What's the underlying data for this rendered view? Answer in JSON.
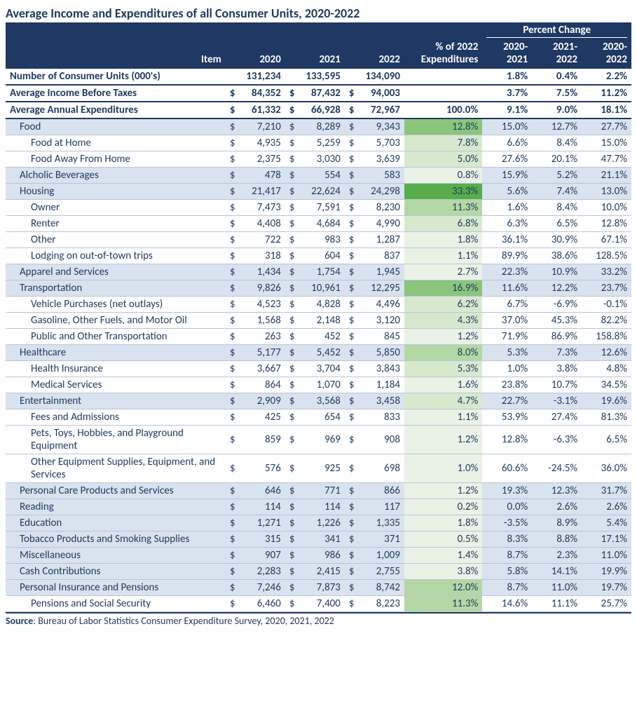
{
  "title": "Average Income and Expenditures of all Consumer Units, 2020-2022",
  "headers": {
    "item": "Item",
    "y2020": "2020",
    "y2021": "2021",
    "y2022": "2022",
    "pctExp": "% of 2022 Expenditures",
    "pctChange": "Percent Change",
    "c1": "2020-2021",
    "c2": "2021-2022",
    "c3": "2020-2022"
  },
  "colors": {
    "heatmap": {
      "none": "#ffffff",
      "l0": "#eaf2e6",
      "l1": "#d7e9cd",
      "l2": "#b4d7a6",
      "l3": "#8bc57c",
      "l4": "#57ad4a",
      "cat": "#d9e2ef",
      "header": "#1f3864",
      "text": "#1f3a5f"
    }
  },
  "rows": [
    {
      "kind": "bold",
      "item": "Number of Consumer Units (000's)",
      "v": [
        "131,234",
        "133,595",
        "134,090"
      ],
      "dollar": false,
      "pct": "",
      "pl": "none",
      "chg": [
        "1.8%",
        "0.4%",
        "2.2%"
      ]
    },
    {
      "kind": "bold",
      "item": "Average Income Before Taxes",
      "v": [
        "84,352",
        "87,432",
        "94,003"
      ],
      "dollar": true,
      "pct": "",
      "pl": "none",
      "chg": [
        "3.7%",
        "7.5%",
        "11.2%"
      ]
    },
    {
      "kind": "bold",
      "item": "Average Annual Expenditures",
      "v": [
        "61,332",
        "66,928",
        "72,967"
      ],
      "dollar": true,
      "pct": "100.0%",
      "pl": "none",
      "chg": [
        "9.1%",
        "9.0%",
        "18.1%"
      ]
    },
    {
      "kind": "cat",
      "indent": 1,
      "item": "Food",
      "v": [
        "7,210",
        "8,289",
        "9,343"
      ],
      "dollar": true,
      "pct": "12.8%",
      "pl": "l3",
      "chg": [
        "15.0%",
        "12.7%",
        "27.7%"
      ]
    },
    {
      "indent": 2,
      "item": "Food at Home",
      "v": [
        "4,935",
        "5,259",
        "5,703"
      ],
      "dollar": true,
      "pct": "7.8%",
      "pl": "l1",
      "chg": [
        "6.6%",
        "8.4%",
        "15.0%"
      ]
    },
    {
      "indent": 2,
      "item": "Food Away From Home",
      "v": [
        "2,375",
        "3,030",
        "3,639"
      ],
      "dollar": true,
      "pct": "5.0%",
      "pl": "l1",
      "chg": [
        "27.6%",
        "20.1%",
        "47.7%"
      ]
    },
    {
      "kind": "cat",
      "indent": 1,
      "item": "Alcholic Beverages",
      "v": [
        "478",
        "554",
        "583"
      ],
      "dollar": true,
      "pct": "0.8%",
      "pl": "l0",
      "chg": [
        "15.9%",
        "5.2%",
        "21.1%"
      ]
    },
    {
      "kind": "cat",
      "indent": 1,
      "item": "Housing",
      "v": [
        "21,417",
        "22,624",
        "24,298"
      ],
      "dollar": true,
      "pct": "33.3%",
      "pl": "l4",
      "chg": [
        "5.6%",
        "7.4%",
        "13.0%"
      ]
    },
    {
      "indent": 2,
      "item": "Owner",
      "v": [
        "7,473",
        "7,591",
        "8,230"
      ],
      "dollar": true,
      "pct": "11.3%",
      "pl": "l2",
      "chg": [
        "1.6%",
        "8.4%",
        "10.0%"
      ]
    },
    {
      "indent": 2,
      "item": "Renter",
      "v": [
        "4,408",
        "4,684",
        "4,990"
      ],
      "dollar": true,
      "pct": "6.8%",
      "pl": "l1",
      "chg": [
        "6.3%",
        "6.5%",
        "12.8%"
      ]
    },
    {
      "indent": 2,
      "item": "Other",
      "v": [
        "722",
        "983",
        "1,287"
      ],
      "dollar": true,
      "pct": "1.8%",
      "pl": "l0",
      "chg": [
        "36.1%",
        "30.9%",
        "67.1%"
      ]
    },
    {
      "indent": 2,
      "item": "Lodging on out-of-town trips",
      "v": [
        "318",
        "604",
        "837"
      ],
      "dollar": true,
      "pct": "1.1%",
      "pl": "l0",
      "chg": [
        "89.9%",
        "38.6%",
        "128.5%"
      ]
    },
    {
      "kind": "cat",
      "indent": 1,
      "item": "Apparel and Services",
      "v": [
        "1,434",
        "1,754",
        "1,945"
      ],
      "dollar": true,
      "pct": "2.7%",
      "pl": "l0",
      "chg": [
        "22.3%",
        "10.9%",
        "33.2%"
      ]
    },
    {
      "kind": "cat",
      "indent": 1,
      "item": "Transportation",
      "v": [
        "9,826",
        "10,961",
        "12,295"
      ],
      "dollar": true,
      "pct": "16.9%",
      "pl": "l3",
      "chg": [
        "11.6%",
        "12.2%",
        "23.7%"
      ]
    },
    {
      "indent": 2,
      "item": "Vehicle Purchases (net outlays)",
      "v": [
        "4,523",
        "4,828",
        "4,496"
      ],
      "dollar": true,
      "pct": "6.2%",
      "pl": "l1",
      "chg": [
        "6.7%",
        "-6.9%",
        "-0.1%"
      ]
    },
    {
      "indent": 2,
      "item": "Gasoline, Other Fuels, and Motor Oil",
      "v": [
        "1,568",
        "2,148",
        "3,120"
      ],
      "dollar": true,
      "pct": "4.3%",
      "pl": "l1",
      "chg": [
        "37.0%",
        "45.3%",
        "82.2%"
      ]
    },
    {
      "indent": 2,
      "item": "Public and Other Transportation",
      "v": [
        "263",
        "452",
        "845"
      ],
      "dollar": true,
      "pct": "1.2%",
      "pl": "l0",
      "chg": [
        "71.9%",
        "86.9%",
        "158.8%"
      ]
    },
    {
      "kind": "cat",
      "indent": 1,
      "item": "Healthcare",
      "v": [
        "5,177",
        "5,452",
        "5,850"
      ],
      "dollar": true,
      "pct": "8.0%",
      "pl": "l2",
      "chg": [
        "5.3%",
        "7.3%",
        "12.6%"
      ]
    },
    {
      "indent": 2,
      "item": "Health Insurance",
      "v": [
        "3,667",
        "3,704",
        "3,843"
      ],
      "dollar": true,
      "pct": "5.3%",
      "pl": "l1",
      "chg": [
        "1.0%",
        "3.8%",
        "4.8%"
      ]
    },
    {
      "indent": 2,
      "item": "Medical Services",
      "v": [
        "864",
        "1,070",
        "1,184"
      ],
      "dollar": true,
      "pct": "1.6%",
      "pl": "l0",
      "chg": [
        "23.8%",
        "10.7%",
        "34.5%"
      ]
    },
    {
      "kind": "cat",
      "indent": 1,
      "item": "Entertainment",
      "v": [
        "2,909",
        "3,568",
        "3,458"
      ],
      "dollar": true,
      "pct": "4.7%",
      "pl": "l1",
      "chg": [
        "22.7%",
        "-3.1%",
        "19.6%"
      ]
    },
    {
      "indent": 2,
      "item": "Fees and Admissions",
      "v": [
        "425",
        "654",
        "833"
      ],
      "dollar": true,
      "pct": "1.1%",
      "pl": "l0",
      "chg": [
        "53.9%",
        "27.4%",
        "81.3%"
      ]
    },
    {
      "indent": 2,
      "item": "Pets, Toys, Hobbies, and Playground Equipment",
      "v": [
        "859",
        "969",
        "908"
      ],
      "dollar": true,
      "pct": "1.2%",
      "pl": "l0",
      "chg": [
        "12.8%",
        "-6.3%",
        "6.5%"
      ]
    },
    {
      "indent": 2,
      "item": "Other Equipment Supplies, Equipment, and Services",
      "v": [
        "576",
        "925",
        "698"
      ],
      "dollar": true,
      "pct": "1.0%",
      "pl": "l0",
      "chg": [
        "60.6%",
        "-24.5%",
        "36.0%"
      ]
    },
    {
      "kind": "cat",
      "indent": 1,
      "item": "Personal Care Products and Services",
      "v": [
        "646",
        "771",
        "866"
      ],
      "dollar": true,
      "pct": "1.2%",
      "pl": "l0",
      "chg": [
        "19.3%",
        "12.3%",
        "31.7%"
      ]
    },
    {
      "kind": "cat",
      "indent": 1,
      "item": "Reading",
      "v": [
        "114",
        "114",
        "117"
      ],
      "dollar": true,
      "pct": "0.2%",
      "pl": "l0",
      "chg": [
        "0.0%",
        "2.6%",
        "2.6%"
      ]
    },
    {
      "kind": "cat",
      "indent": 1,
      "item": "Education",
      "v": [
        "1,271",
        "1,226",
        "1,335"
      ],
      "dollar": true,
      "pct": "1.8%",
      "pl": "l0",
      "chg": [
        "-3.5%",
        "8.9%",
        "5.4%"
      ]
    },
    {
      "kind": "cat",
      "indent": 1,
      "item": "Tobacco Products and Smoking Supplies",
      "v": [
        "315",
        "341",
        "371"
      ],
      "dollar": true,
      "pct": "0.5%",
      "pl": "l0",
      "chg": [
        "8.3%",
        "8.8%",
        "17.1%"
      ]
    },
    {
      "kind": "cat",
      "indent": 1,
      "item": "Miscellaneous",
      "v": [
        "907",
        "986",
        "1,009"
      ],
      "dollar": true,
      "pct": "1.4%",
      "pl": "l0",
      "chg": [
        "8.7%",
        "2.3%",
        "11.0%"
      ]
    },
    {
      "kind": "cat",
      "indent": 1,
      "item": "Cash Contributions",
      "v": [
        "2,283",
        "2,415",
        "2,755"
      ],
      "dollar": true,
      "pct": "3.8%",
      "pl": "l0",
      "chg": [
        "5.8%",
        "14.1%",
        "19.9%"
      ]
    },
    {
      "kind": "cat",
      "indent": 1,
      "item": "Personal Insurance and Pensions",
      "v": [
        "7,246",
        "7,873",
        "8,742"
      ],
      "dollar": true,
      "pct": "12.0%",
      "pl": "l2",
      "chg": [
        "8.7%",
        "11.0%",
        "19.7%"
      ]
    },
    {
      "indent": 2,
      "item": "Pensions and Social Security",
      "v": [
        "6,460",
        "7,400",
        "8,223"
      ],
      "dollar": true,
      "pct": "11.3%",
      "pl": "l2",
      "chg": [
        "14.6%",
        "11.1%",
        "25.7%"
      ]
    }
  ],
  "source": {
    "label": "Source",
    "text": ": Bureau of Labor Statistics Consumer Expenditure Survey, 2020, 2021, 2022"
  }
}
